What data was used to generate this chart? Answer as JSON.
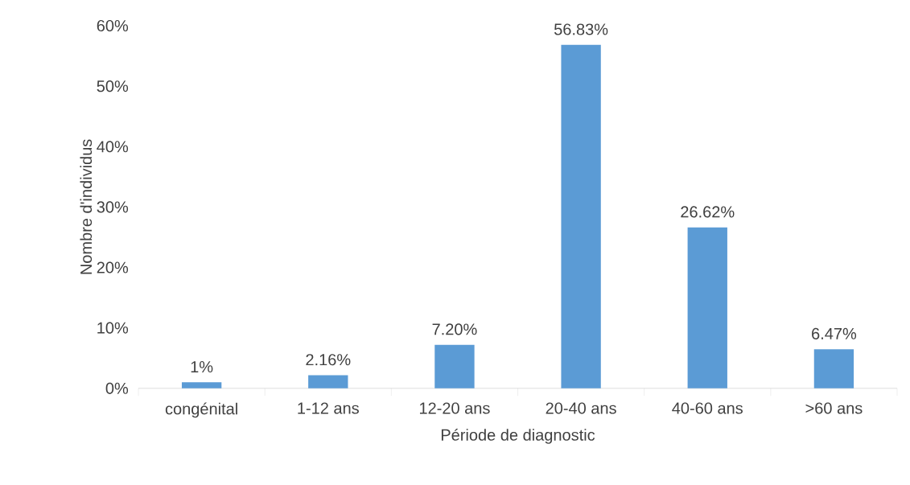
{
  "chart_data": {
    "type": "bar",
    "xlabel": "Période de diagnostic",
    "ylabel": "Nombre d'individus",
    "categories": [
      "congénital",
      "1-12 ans",
      "12-20 ans",
      "20-40 ans",
      "40-60 ans",
      ">60 ans"
    ],
    "values": [
      1,
      2.16,
      7.2,
      56.83,
      26.62,
      6.47
    ],
    "value_labels": [
      "1%",
      "2.16%",
      "7.20%",
      "56.83%",
      "26.62%",
      "6.47%"
    ],
    "color": "#5b9bd5",
    "ylim": [
      0,
      60
    ],
    "yticks": [
      {
        "value": 0,
        "label": "0%"
      },
      {
        "value": 10,
        "label": "10%"
      },
      {
        "value": 20,
        "label": "20%"
      },
      {
        "value": 30,
        "label": "30%"
      },
      {
        "value": 40,
        "label": "40%"
      },
      {
        "value": 50,
        "label": "50%"
      },
      {
        "value": 60,
        "label": "60%"
      }
    ]
  }
}
